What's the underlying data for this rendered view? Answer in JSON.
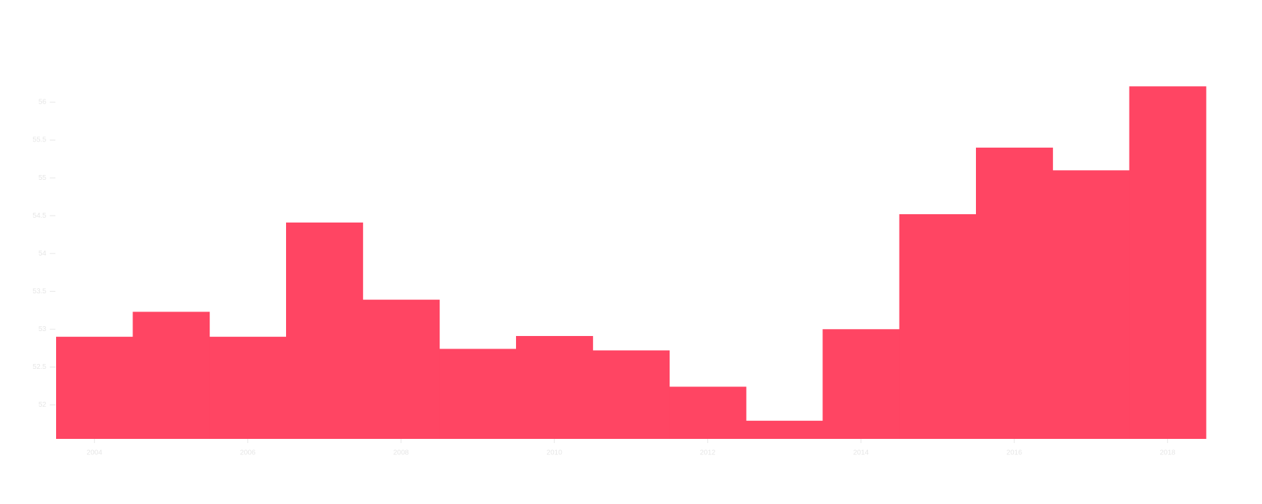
{
  "chart_data": {
    "type": "bar",
    "categories": [
      "2004",
      null,
      "2006",
      null,
      "2008",
      null,
      "2010",
      null,
      "2012",
      null,
      "2014",
      null,
      "2016",
      null,
      "2018"
    ],
    "values": [
      52.9,
      53.23,
      52.9,
      54.41,
      53.39,
      52.74,
      52.91,
      52.72,
      52.24,
      51.79,
      53.0,
      54.52,
      55.4,
      55.1,
      56.21
    ],
    "color": "#ff4563",
    "ylim": [
      51.55,
      56.5
    ],
    "yticks": [
      52,
      52.5,
      53,
      53.5,
      54,
      54.5,
      55,
      55.5,
      56
    ]
  }
}
